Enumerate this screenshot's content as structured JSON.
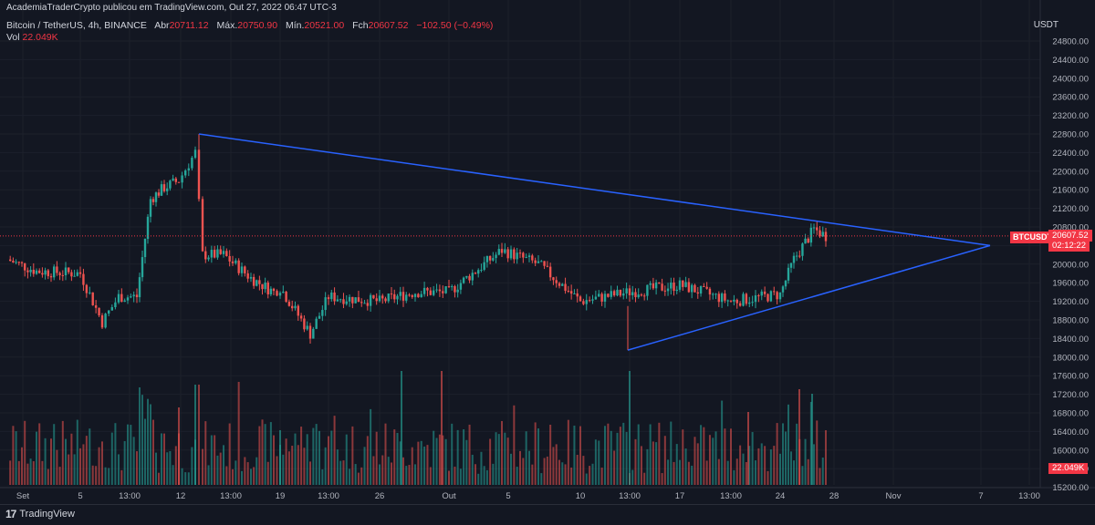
{
  "header": {
    "line1": "AcademiaTraderCrypto publicou em TradingView.com, Out 27, 2022 06:47 UTC-3",
    "symbol_desc": "Bitcoin / TetherUS, 4h, BINANCE",
    "open_label": "Abr",
    "open_value": "20711.12",
    "high_label": "Máx.",
    "high_value": "20750.90",
    "low_label": "Mín.",
    "low_value": "20521.00",
    "close_label": "Fch",
    "close_value": "20607.52",
    "change_value": "−102.50 (−0.49%)",
    "vol_label": "Vol",
    "vol_value": "22.049K"
  },
  "axis": {
    "unit": "USDT",
    "price_ticks": [
      "24800.00",
      "24400.00",
      "24000.00",
      "23600.00",
      "23200.00",
      "22800.00",
      "22400.00",
      "22000.00",
      "21600.00",
      "21200.00",
      "20800.00",
      "20400.00",
      "20000.00",
      "19600.00",
      "19200.00",
      "18800.00",
      "18400.00",
      "18000.00",
      "17600.00",
      "17200.00",
      "16800.00",
      "16400.00",
      "16000.00",
      "15600.00",
      "15200.00"
    ],
    "time_ticks": [
      "Set",
      "5",
      "13:00",
      "12",
      "13:00",
      "19",
      "13:00",
      "26",
      "Out",
      "5",
      "10",
      "13:00",
      "17",
      "13:00",
      "24",
      "28",
      "Nov",
      "7",
      "13:00"
    ]
  },
  "tags": {
    "symbol": "BTCUSDT",
    "last_price": "20607.52",
    "countdown": "02:12:22",
    "volume": "22.049K"
  },
  "branding": {
    "logo_text": "TradingView",
    "logo_mark": "17"
  },
  "colors": {
    "up": "#26a69a",
    "down": "#ef5350",
    "trendline": "#2962ff",
    "bg": "#131722",
    "grid": "#1e222d"
  },
  "chart_data": {
    "type": "candlestick",
    "symbol": "BTCUSDT",
    "interval": "4h",
    "y_range": [
      15200,
      25000
    ],
    "price_series_daily": [
      {
        "day": "Set 1",
        "close": 20100
      },
      {
        "day": "Set 3",
        "close": 19850
      },
      {
        "day": "Set 5",
        "close": 19800
      },
      {
        "day": "Set 6",
        "close": 18750
      },
      {
        "day": "Set 7",
        "close": 19300
      },
      {
        "day": "Set 8",
        "close": 19300
      },
      {
        "day": "Set 9",
        "close": 21400
      },
      {
        "day": "Set 10",
        "close": 21650
      },
      {
        "day": "Set 11",
        "close": 21800
      },
      {
        "day": "Set 12",
        "close": 22400
      },
      {
        "day": "Set 13",
        "close": 20200
      },
      {
        "day": "Set 14",
        "close": 20200
      },
      {
        "day": "Set 16",
        "close": 19700
      },
      {
        "day": "Set 18",
        "close": 19400
      },
      {
        "day": "Set 19",
        "close": 19500
      },
      {
        "day": "Set 21",
        "close": 18500
      },
      {
        "day": "Set 23",
        "close": 19300
      },
      {
        "day": "Set 26",
        "close": 19200
      },
      {
        "day": "Set 28",
        "close": 19400
      },
      {
        "day": "Out 1",
        "close": 19400
      },
      {
        "day": "Out 4",
        "close": 20300
      },
      {
        "day": "Out 6",
        "close": 20000
      },
      {
        "day": "Out 10",
        "close": 19200
      },
      {
        "day": "Out 13",
        "close": 19400
      },
      {
        "day": "Out 17",
        "close": 19550
      },
      {
        "day": "Out 21",
        "close": 19200
      },
      {
        "day": "Out 24",
        "close": 19350
      },
      {
        "day": "Out 25",
        "close": 20100
      },
      {
        "day": "Out 26",
        "close": 20750
      },
      {
        "day": "Out 27",
        "close": 20607.52
      }
    ],
    "key_levels": {
      "high": 22800,
      "low": 18150,
      "last": 20607.52
    },
    "trendlines": [
      {
        "name": "resistance",
        "from": {
          "x": "Set 13",
          "y": 22800
        },
        "to": {
          "x": "Nov 7",
          "y": 20400
        }
      },
      {
        "name": "support",
        "from": {
          "x": "Out 13",
          "y": 18150
        },
        "to": {
          "x": "Nov 7",
          "y": 20400
        }
      }
    ],
    "volume_series": "bars below price, max approx. matching first-visible spikes on Set 13 and Out 13",
    "grid": true,
    "legend": "top-left"
  }
}
